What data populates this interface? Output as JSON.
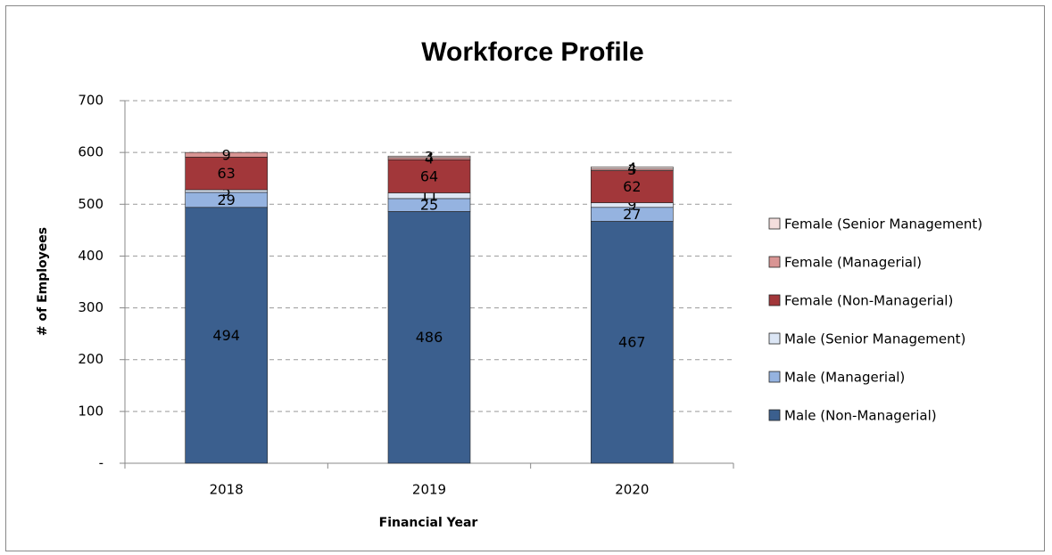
{
  "chart_data": {
    "type": "stacked_bar",
    "title": "Workforce Profile",
    "x_label": "Financial Year",
    "y_label": "# of Employees",
    "categories": [
      "2018",
      "2019",
      "2020"
    ],
    "series": [
      {
        "name": "Male (Non-Managerial)",
        "color": "#3b5f8e",
        "values": [
          494,
          486,
          467
        ]
      },
      {
        "name": "Male (Managerial)",
        "color": "#95b3e0",
        "values": [
          29,
          25,
          27
        ]
      },
      {
        "name": "Male (Senior Management)",
        "color": "#dce6f5",
        "values": [
          5,
          11,
          9
        ]
      },
      {
        "name": "Female (Non-Managerial)",
        "color": "#a2373a",
        "values": [
          63,
          64,
          62
        ]
      },
      {
        "name": "Female (Managerial)",
        "color": "#d99594",
        "values": [
          9,
          4,
          3
        ]
      },
      {
        "name": "Female (Senior Management)",
        "color": "#f4dedd",
        "values": [
          null,
          3,
          4
        ]
      }
    ],
    "ylim": [
      0,
      700
    ],
    "yticks": [
      {
        "value": 0,
        "label": "-"
      },
      100,
      200,
      300,
      400,
      500,
      600,
      700
    ],
    "grid": true,
    "legend": "right"
  }
}
